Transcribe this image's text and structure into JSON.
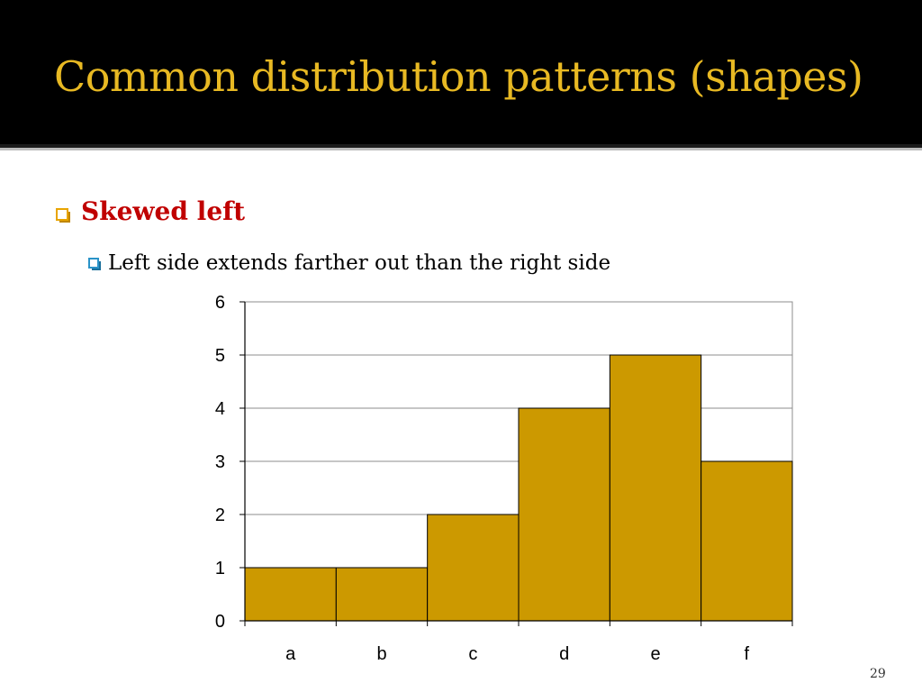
{
  "slide": {
    "title": "Common distribution patterns (shapes)",
    "bullet_1": "Skewed left",
    "bullet_2": "Left side extends farther out than the right side",
    "page_number": "29"
  },
  "colors": {
    "title": "#e8b923",
    "bullet_1_text": "#c00000",
    "bar_fill": "#cc9900",
    "title_bar": "#000000"
  },
  "chart_data": {
    "type": "bar",
    "categories": [
      "a",
      "b",
      "c",
      "d",
      "e",
      "f"
    ],
    "values": [
      1,
      1,
      2,
      4,
      5,
      3
    ],
    "title": "",
    "xlabel": "",
    "ylabel": "",
    "ylim": [
      0,
      6
    ],
    "yticks": [
      0,
      1,
      2,
      3,
      4,
      5,
      6
    ],
    "grid": true,
    "legend": "none",
    "bar_gap": 0
  }
}
